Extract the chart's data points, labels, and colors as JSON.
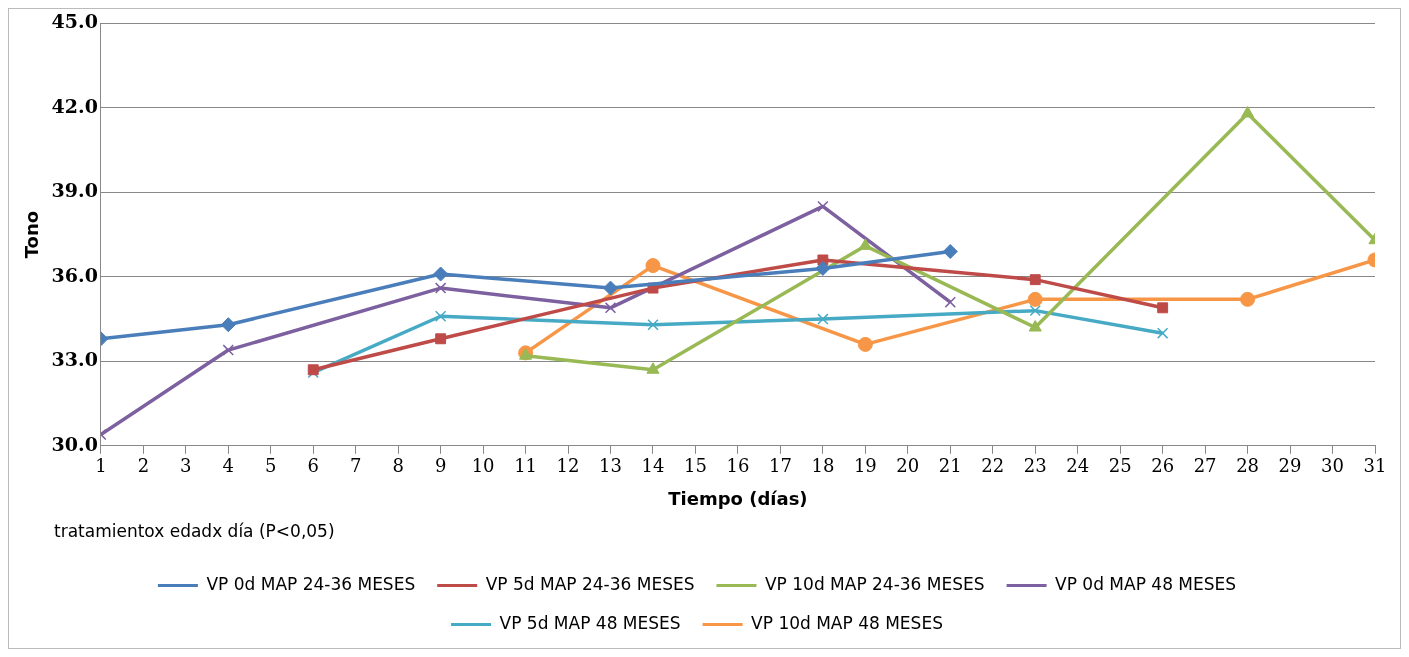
{
  "chart_data": {
    "type": "line",
    "xlabel": "Tiempo (días)",
    "ylabel": "Tono",
    "annotations": [
      "tratamientox edadx día (P<0,05)"
    ],
    "xlim": [
      1,
      31
    ],
    "xticks": [
      1,
      2,
      3,
      4,
      5,
      6,
      7,
      8,
      9,
      10,
      11,
      12,
      13,
      14,
      15,
      16,
      17,
      18,
      19,
      20,
      21,
      22,
      23,
      24,
      25,
      26,
      27,
      28,
      29,
      30,
      31
    ],
    "ylim": [
      30,
      45
    ],
    "yticks": [
      {
        "value": 30,
        "label": "30.0"
      },
      {
        "value": 33,
        "label": "33.0"
      },
      {
        "value": 36,
        "label": "36.0"
      },
      {
        "value": 39,
        "label": "39.0"
      },
      {
        "value": 42,
        "label": "42.0"
      },
      {
        "value": 45,
        "label": "45.0"
      }
    ],
    "grid": "y",
    "legend": "bottom",
    "line_style": "solid",
    "series": [
      {
        "name": "VP 0d MAP 24-36 MESES",
        "color": "#4a7ebb",
        "marker": "diamond",
        "x": [
          1,
          4,
          9,
          13,
          18,
          21
        ],
        "values": [
          33.8,
          34.3,
          36.1,
          35.6,
          36.3,
          36.9
        ]
      },
      {
        "name": "VP 5d MAP 24-36 MESES",
        "color": "#be4b48",
        "marker": "square",
        "x": [
          6,
          9,
          14,
          18,
          23,
          26
        ],
        "values": [
          32.7,
          33.8,
          35.6,
          36.6,
          35.9,
          34.9
        ]
      },
      {
        "name": "VP 10d MAP 24-36 MESES",
        "color": "#98b954",
        "marker": "triangle",
        "x": [
          11,
          14,
          19,
          23,
          28,
          31
        ],
        "values": [
          33.2,
          32.7,
          37.1,
          34.2,
          41.8,
          37.3
        ]
      },
      {
        "name": "VP 0d MAP 48 MESES",
        "color": "#7d60a0",
        "marker": "cross",
        "x": [
          1,
          4,
          9,
          13,
          18,
          21
        ],
        "values": [
          30.4,
          33.4,
          35.6,
          34.9,
          38.5,
          35.1
        ]
      },
      {
        "name": "VP 5d MAP 48 MESES",
        "color": "#46aac5",
        "marker": "cross",
        "x": [
          6,
          9,
          14,
          18,
          23,
          26
        ],
        "values": [
          32.6,
          34.6,
          34.3,
          34.5,
          34.8,
          34.0
        ]
      },
      {
        "name": "VP 10d MAP 48 MESES",
        "color": "#f79646",
        "marker": "circle",
        "x": [
          11,
          14,
          19,
          23,
          28,
          31
        ],
        "values": [
          33.3,
          36.4,
          33.6,
          35.2,
          35.2,
          36.6
        ]
      }
    ]
  }
}
